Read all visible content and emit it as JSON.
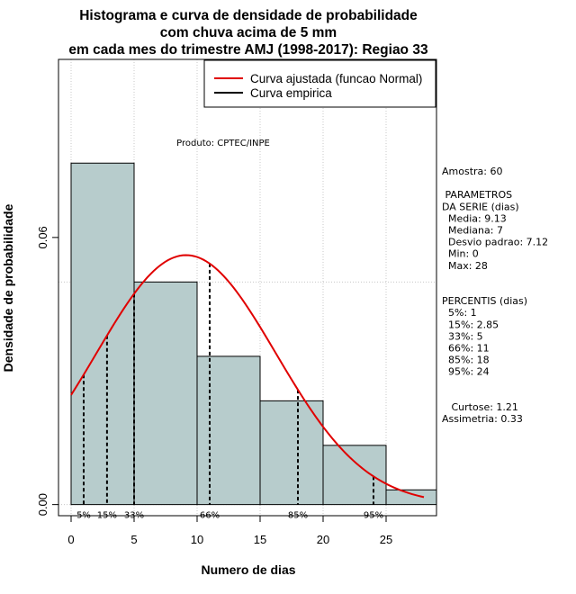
{
  "chart_data": {
    "type": "bar",
    "title": [
      "Histograma e curva de densidade de probabilidade",
      "com chuva acima de 5 mm",
      "em cada mes do trimestre AMJ (1998-2017): Regiao 33"
    ],
    "xlabel": "Numero de dias",
    "ylabel": "Densidade de probabilidade",
    "xlim": [
      -1,
      29
    ],
    "ylim": [
      -0.0025,
      0.1
    ],
    "x_ticks": [
      0,
      5,
      10,
      15,
      20,
      25
    ],
    "y_ticks": [
      0.0,
      0.06
    ],
    "y_tick_labels": [
      "0.00",
      "0.06"
    ],
    "grid": true,
    "grid_x": [
      0,
      5,
      10,
      15,
      20,
      25
    ],
    "grid_y": [
      0.0,
      0.05,
      0.1
    ],
    "histogram": {
      "bin_edges": [
        0,
        5,
        10,
        15,
        20,
        25,
        30
      ],
      "density": [
        0.0767,
        0.05,
        0.0333,
        0.0233,
        0.0133,
        0.0033
      ],
      "fill_color": "#b7cccc"
    },
    "series": [
      {
        "name": "Curva ajustada (funcao Normal)",
        "color": "#e00000",
        "distribution": "normal",
        "mean": 9.13,
        "sd": 7.12,
        "x_range": [
          0,
          28
        ]
      },
      {
        "name": "Curva empirica",
        "color": "#000000"
      }
    ],
    "percentile_markers": [
      {
        "label": "5%",
        "x": 1
      },
      {
        "label": "15%",
        "x": 2.85
      },
      {
        "label": "33%",
        "x": 5
      },
      {
        "label": "66%",
        "x": 11
      },
      {
        "label": "85%",
        "x": 18
      },
      {
        "label": "95%",
        "x": 24
      }
    ],
    "annotation": "Produto: CPTEC/INPE",
    "legend_position": "top-right",
    "side_panel": [
      "Amostra: 60",
      "",
      " PARAMETROS",
      "DA SERIE (dias)",
      "  Media: 9.13",
      "  Mediana: 7",
      "  Desvio padrao: 7.12",
      "  Min: 0",
      "  Max: 28",
      "",
      "",
      "PERCENTIS (dias)",
      "  5%: 1",
      "  15%: 2.85",
      "  33%: 5",
      "  66%: 11",
      "  85%: 18",
      "  95%: 24",
      "",
      "",
      "   Curtose: 1.21",
      "Assimetria: 0.33"
    ]
  }
}
